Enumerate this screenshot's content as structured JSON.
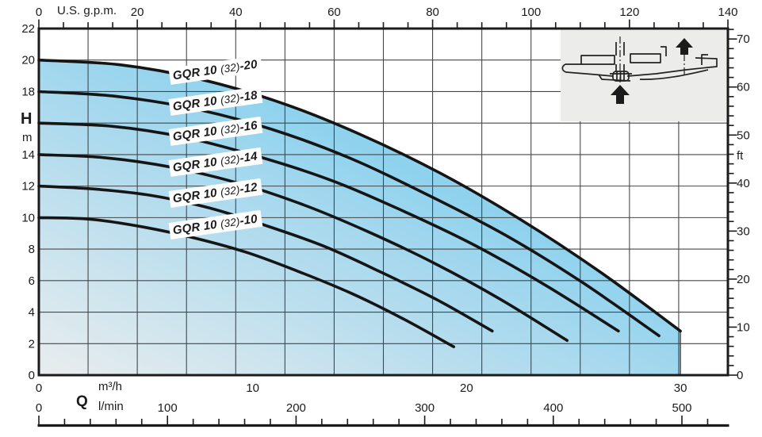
{
  "axis_top": {
    "unit": "U.S. g.p.m.",
    "ticks": [
      0,
      20,
      40,
      60,
      80,
      100,
      120,
      140
    ],
    "minor_step": 5,
    "max": 140
  },
  "axis_left": {
    "title": "H",
    "unit": "m",
    "ticks": [
      22,
      20,
      18,
      14,
      12,
      10,
      8,
      6,
      4,
      2,
      0
    ],
    "range": [
      0,
      22
    ]
  },
  "axis_right": {
    "unit": "ft",
    "ticks": [
      70,
      60,
      50,
      40,
      30,
      20,
      10,
      0
    ],
    "minor_step": 2,
    "max": 72
  },
  "axis_bottom_m3h": {
    "unit": "m³/h",
    "ticks": [
      0,
      10,
      20,
      30
    ]
  },
  "axis_bottom_lmin": {
    "flow_symbol": "Q",
    "unit": "l/min",
    "ticks": [
      0,
      100,
      200,
      300,
      400,
      500
    ],
    "minor_step": 20,
    "minor_max": 520
  },
  "chart_data": {
    "type": "line",
    "title": "GQR 10 (32) pump head-flow performance curves",
    "xlabel": "Q",
    "x_units": [
      "m³/h",
      "l/min",
      "U.S. g.p.m."
    ],
    "ylabel": "H",
    "y_units": [
      "m",
      "ft"
    ],
    "x_range_m3h": [
      0,
      32.2
    ],
    "y_range_m": [
      0,
      22
    ],
    "grid": true,
    "legend_position": "on-curve-labels",
    "series": [
      {
        "name": "GQR 10 (32)-10",
        "points": [
          [
            0,
            10
          ],
          [
            2.4,
            9.9
          ],
          [
            4.9,
            9.4
          ],
          [
            7.3,
            8.7
          ],
          [
            9.7,
            7.8
          ],
          [
            12.1,
            6.6
          ],
          [
            14.6,
            5.2
          ],
          [
            17.0,
            3.6
          ],
          [
            19.4,
            1.8
          ]
        ]
      },
      {
        "name": "GQR 10 (32)-12",
        "points": [
          [
            0,
            12
          ],
          [
            2.7,
            11.8
          ],
          [
            5.3,
            11.4
          ],
          [
            8.0,
            10.6
          ],
          [
            10.6,
            9.5
          ],
          [
            13.3,
            8.2
          ],
          [
            15.9,
            6.6
          ],
          [
            18.6,
            4.8
          ],
          [
            21.2,
            2.8
          ]
        ]
      },
      {
        "name": "GQR 10 (32)-14",
        "points": [
          [
            0,
            14
          ],
          [
            3.1,
            13.8
          ],
          [
            6.2,
            13.2
          ],
          [
            9.3,
            12.2
          ],
          [
            12.4,
            10.8
          ],
          [
            15.4,
            9.1
          ],
          [
            18.5,
            7.1
          ],
          [
            21.6,
            4.8
          ],
          [
            24.7,
            2.2
          ]
        ]
      },
      {
        "name": "GQR 10 (32)-16",
        "points": [
          [
            0,
            16
          ],
          [
            3.4,
            15.8
          ],
          [
            6.8,
            15.1
          ],
          [
            10.2,
            13.9
          ],
          [
            13.6,
            12.4
          ],
          [
            16.9,
            10.5
          ],
          [
            20.3,
            8.3
          ],
          [
            23.7,
            5.7
          ],
          [
            27.1,
            2.8
          ]
        ]
      },
      {
        "name": "GQR 10 (32)-18",
        "points": [
          [
            0,
            18
          ],
          [
            3.6,
            17.7
          ],
          [
            7.3,
            16.9
          ],
          [
            10.9,
            15.6
          ],
          [
            14.5,
            13.8
          ],
          [
            18.1,
            11.5
          ],
          [
            21.8,
            8.9
          ],
          [
            25.4,
            5.9
          ],
          [
            29.0,
            2.5
          ]
        ]
      },
      {
        "name": "GQR 10 (32)-20",
        "points": [
          [
            0,
            20
          ],
          [
            3.8,
            19.7
          ],
          [
            7.5,
            18.8
          ],
          [
            11.3,
            17.3
          ],
          [
            15.0,
            15.3
          ],
          [
            18.8,
            12.8
          ],
          [
            22.5,
            9.9
          ],
          [
            26.3,
            6.5
          ],
          [
            30.0,
            2.8
          ]
        ]
      }
    ],
    "operating_envelope": {
      "bounded_by": "GQR 10 (32)-20",
      "max_q_m3h": 30.0,
      "fill": "blue-gradient"
    }
  },
  "curve_labels": [
    {
      "prefix": "GQR 10",
      "mid": "(32)",
      "suffix": "-20"
    },
    {
      "prefix": "GQR 10",
      "mid": "(32)",
      "suffix": "-18"
    },
    {
      "prefix": "GQR 10",
      "mid": "(32)",
      "suffix": "-16"
    },
    {
      "prefix": "GQR 10",
      "mid": "(32)",
      "suffix": "-14"
    },
    {
      "prefix": "GQR 10",
      "mid": "(32)",
      "suffix": "-12"
    },
    {
      "prefix": "GQR 10",
      "mid": "(32)",
      "suffix": "-10"
    }
  ],
  "inset": {
    "description": "pump installation schematic with upward flow arrows"
  },
  "colors": {
    "ink": "#1b1b1b",
    "grid": "#474747",
    "fill_start": "#e9edee",
    "fill_mid": "#a9d9ee",
    "fill_end": "#53c3ef",
    "inset_bg": "#ececea",
    "label_bg": "#ffffff"
  }
}
